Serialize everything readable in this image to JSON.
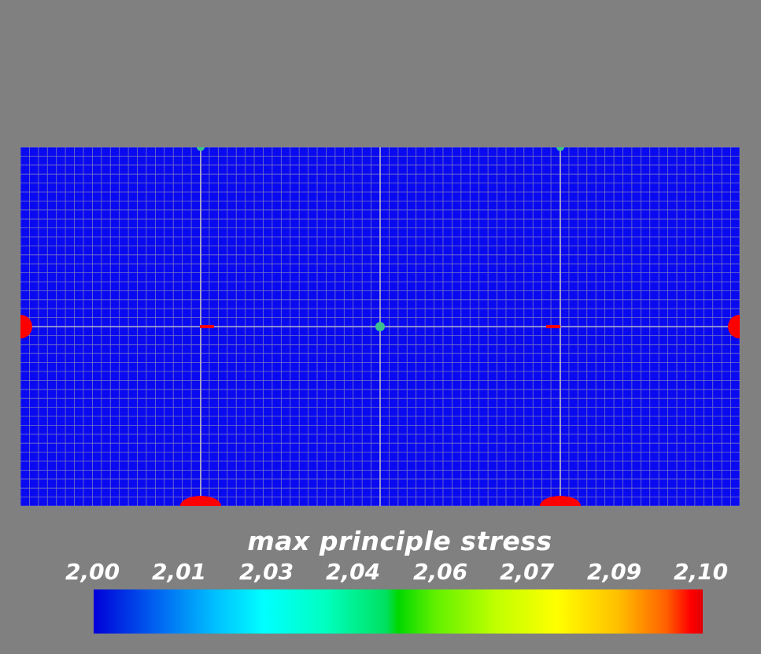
{
  "legend": {
    "title": "max principle stress",
    "ticks": [
      "2,00",
      "2,01",
      "2,03",
      "2,04",
      "2,06",
      "2,07",
      "2,09",
      "2,10"
    ],
    "min": 2.0,
    "max": 2.1,
    "colormap": "rainbow-blue-to-red"
  },
  "colors": {
    "background": "#808080",
    "mesh_fill": "#0a0af0",
    "grid_lines": "#9a9ab4",
    "hotspot": "#ff0000",
    "transition": "#3cc08c"
  }
}
